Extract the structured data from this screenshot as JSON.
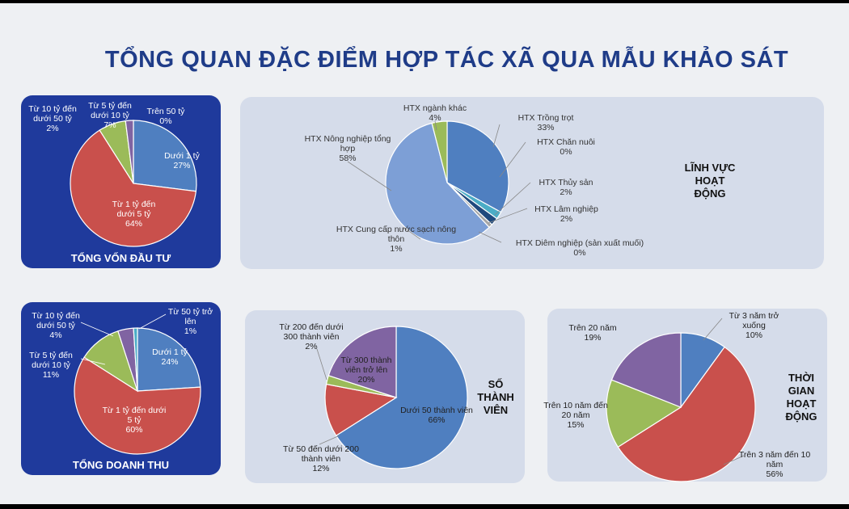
{
  "title": "TỔNG QUAN ĐẶC ĐIỂM HỢP TÁC XÃ QUA MẪU KHẢO SÁT",
  "colors": {
    "blue": "#4f7fc0",
    "red": "#c9504c",
    "green": "#9bbb59",
    "purple": "#8064a2",
    "teal": "#4bacc6",
    "navy": "#1f497d",
    "lightblue": "#7d9fd6",
    "grey": "#a6a6a6",
    "panel_dark": "#1f3a9c",
    "panel_light": "#d5dcea",
    "title": "#1f3c88"
  },
  "chart_data": [
    {
      "type": "pie",
      "title": "TỔNG VỐN ĐẦU TƯ",
      "slices": [
        {
          "label": "Dưới 1 tỷ",
          "pct_text": "27%",
          "value": 27,
          "color": "#4f7fc0"
        },
        {
          "label": "Từ 1 tỷ đến dưới 5 tỷ",
          "pct_text": "64%",
          "value": 64,
          "color": "#c9504c"
        },
        {
          "label": "Từ 5 tỷ đến dưới 10 tỷ",
          "pct_text": "7%",
          "value": 7,
          "color": "#9bbb59"
        },
        {
          "label": "Từ 10 tỷ đến dưới 50 tỷ",
          "pct_text": "2%",
          "value": 2,
          "color": "#8064a2"
        },
        {
          "label": "Trên 50 tỷ",
          "pct_text": "0%",
          "value": 0,
          "color": "#4bacc6"
        }
      ]
    },
    {
      "type": "pie",
      "title": "LĨNH VỰC HOẠT ĐỘNG",
      "slices": [
        {
          "label": "HTX Trồng trọt",
          "pct_text": "33%",
          "value": 33,
          "color": "#4f7fc0"
        },
        {
          "label": "HTX Chăn nuôi",
          "pct_text": "0%",
          "value": 0,
          "color": "#c9504c"
        },
        {
          "label": "HTX Thủy sản",
          "pct_text": "2%",
          "value": 2,
          "color": "#4bacc6"
        },
        {
          "label": "HTX Lâm nghiệp",
          "pct_text": "2%",
          "value": 2,
          "color": "#1f497d"
        },
        {
          "label": "HTX Diêm nghiệp (sản xuất muối)",
          "pct_text": "0%",
          "value": 0,
          "color": "#f79646"
        },
        {
          "label": "HTX Cung cấp nước sạch nông thôn",
          "pct_text": "1%",
          "value": 1,
          "color": "#a6a6a6"
        },
        {
          "label": "HTX Nông nghiệp tổng hợp",
          "pct_text": "58%",
          "value": 58,
          "color": "#7d9fd6"
        },
        {
          "label": "HTX ngành khác",
          "pct_text": "4%",
          "value": 4,
          "color": "#9bbb59"
        }
      ]
    },
    {
      "type": "pie",
      "title": "TỔNG DOANH THU",
      "slices": [
        {
          "label": "Dưới 1 tỷ",
          "pct_text": "24%",
          "value": 24,
          "color": "#4f7fc0"
        },
        {
          "label": "Từ 1 tỷ đến dưới 5 tỷ",
          "pct_text": "60%",
          "value": 60,
          "color": "#c9504c"
        },
        {
          "label": "Từ 5 tỷ đến dưới 10 tỷ",
          "pct_text": "11%",
          "value": 11,
          "color": "#9bbb59"
        },
        {
          "label": "Từ 10 tỷ đến dưới 50 tỷ",
          "pct_text": "4%",
          "value": 4,
          "color": "#8064a2"
        },
        {
          "label": "Từ 50 tỷ trở lên",
          "pct_text": "1%",
          "value": 1,
          "color": "#4bacc6"
        }
      ]
    },
    {
      "type": "pie",
      "title": "SỐ THÀNH VIÊN",
      "slices": [
        {
          "label": "Dưới 50 thành viên",
          "pct_text": "66%",
          "value": 66,
          "color": "#4f7fc0"
        },
        {
          "label": "Từ 50 đến dưới 200 thành viên",
          "pct_text": "12%",
          "value": 12,
          "color": "#c9504c"
        },
        {
          "label": "Từ 200 đến dưới 300 thành viên",
          "pct_text": "2%",
          "value": 2,
          "color": "#9bbb59"
        },
        {
          "label": "Từ 300 thành viên trở lên",
          "pct_text": "20%",
          "value": 20,
          "color": "#8064a2"
        }
      ]
    },
    {
      "type": "pie",
      "title": "THỜI GIAN HOẠT ĐỘNG",
      "slices": [
        {
          "label": "Từ 3 năm trở xuống",
          "pct_text": "10%",
          "value": 10,
          "color": "#4f7fc0"
        },
        {
          "label": "Trên 3 năm đến 10 năm",
          "pct_text": "56%",
          "value": 56,
          "color": "#c9504c"
        },
        {
          "label": "Trên 10 năm đến 20 năm",
          "pct_text": "15%",
          "value": 15,
          "color": "#9bbb59"
        },
        {
          "label": "Trên 20 năm",
          "pct_text": "19%",
          "value": 19,
          "color": "#8064a2"
        }
      ]
    }
  ]
}
